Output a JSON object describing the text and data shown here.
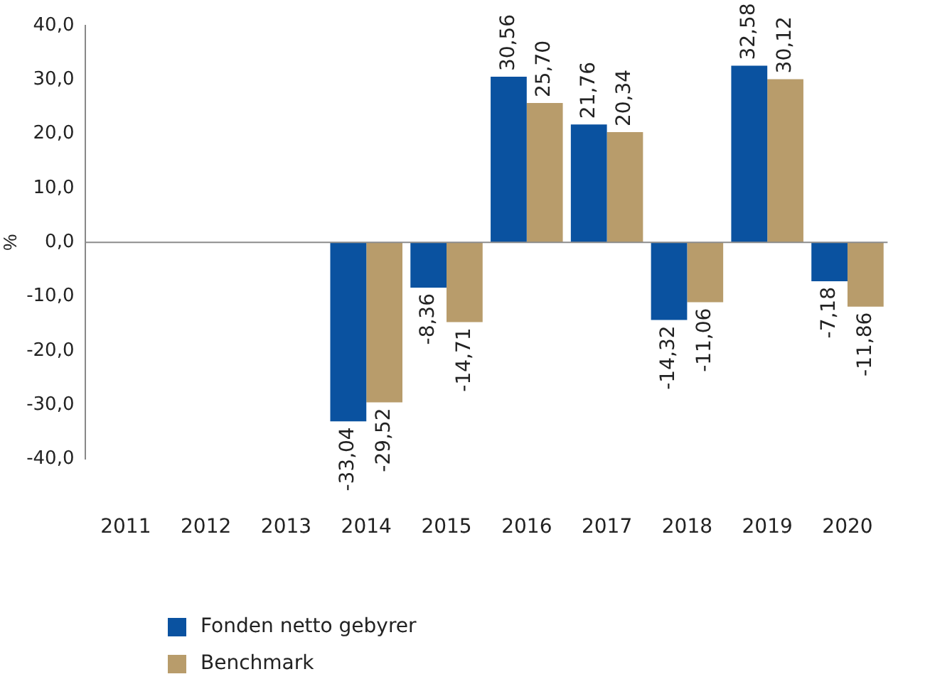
{
  "chart_data": {
    "type": "bar",
    "ylabel": "%",
    "categories": [
      "2011",
      "2012",
      "2013",
      "2014",
      "2015",
      "2016",
      "2017",
      "2018",
      "2019",
      "2020"
    ],
    "series": [
      {
        "name": "Fonden netto gebyrer",
        "color": "#0a52a0",
        "values": [
          null,
          null,
          null,
          -33.04,
          -8.36,
          30.56,
          21.76,
          -14.32,
          32.58,
          -7.18
        ],
        "value_labels": [
          null,
          null,
          null,
          "-33,04",
          "-8,36",
          "30,56",
          "21,76",
          "-14,32",
          "32,58",
          "-7,18"
        ]
      },
      {
        "name": "Benchmark",
        "color": "#b89c6b",
        "values": [
          null,
          null,
          null,
          -29.52,
          -14.71,
          25.7,
          20.34,
          -11.06,
          30.12,
          -11.86
        ],
        "value_labels": [
          null,
          null,
          null,
          "-29,52",
          "-14,71",
          "25,70",
          "20,34",
          "-11,06",
          "30,12",
          "-11,86"
        ]
      }
    ],
    "ylim": [
      -40,
      40
    ],
    "yticks": [
      {
        "value": -40,
        "label": "-40,0"
      },
      {
        "value": -30,
        "label": "-30,0"
      },
      {
        "value": -20,
        "label": "-20,0"
      },
      {
        "value": -10,
        "label": "-10,0"
      },
      {
        "value": 0,
        "label": "0,0"
      },
      {
        "value": 10,
        "label": "10,0"
      },
      {
        "value": 20,
        "label": "20,0"
      },
      {
        "value": 30,
        "label": "30,0"
      },
      {
        "value": 40,
        "label": "40,0"
      }
    ],
    "grid": false,
    "ref_lines": [
      {
        "axis": "y",
        "value": 0,
        "color": "#8c8c8c"
      }
    ],
    "legend": "bottom left"
  }
}
